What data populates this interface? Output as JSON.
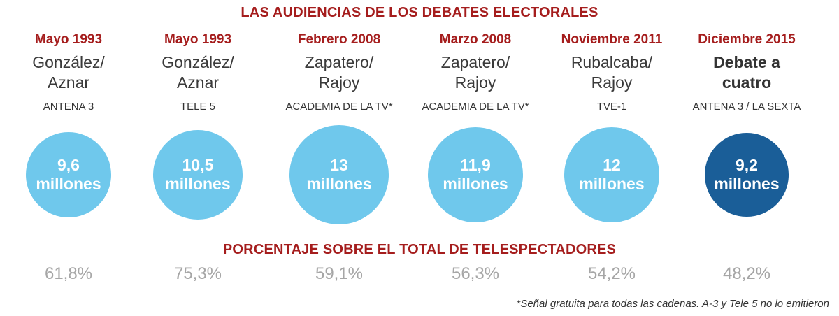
{
  "title": "LAS AUDIENCIAS DE LOS DEBATES ELECTORALES",
  "subtitle": "PORCENTAJE SOBRE EL TOTAL DE TELESPECTADORES",
  "footnote": "*Señal gratuita para todas las cadenas. A-3 y Tele 5 no lo emitieron",
  "colors": {
    "bubble": "#6fc8ec",
    "highlight": "#1a5e98",
    "accent": "#a51d1d",
    "percent": "#a6a6a6"
  },
  "chart_data": {
    "type": "bubble",
    "title": "LAS AUDIENCIAS DE LOS DEBATES ELECTORALES",
    "unit": "millones",
    "debates": [
      {
        "date": "Mayo 1993",
        "participants": "González/\nAznar",
        "channel": "ANTENA 3",
        "audience": 9.6,
        "audience_label": "9,6",
        "share_label": "61,8%",
        "highlight": false
      },
      {
        "date": "Mayo 1993",
        "participants": "González/\nAznar",
        "channel": "TELE 5",
        "audience": 10.5,
        "audience_label": "10,5",
        "share_label": "75,3%",
        "highlight": false
      },
      {
        "date": "Febrero 2008",
        "participants": "Zapatero/\nRajoy",
        "channel": "ACADEMIA DE LA TV*",
        "audience": 13,
        "audience_label": "13",
        "share_label": "59,1%",
        "highlight": false
      },
      {
        "date": "Marzo 2008",
        "participants": "Zapatero/\nRajoy",
        "channel": "ACADEMIA DE LA TV*",
        "audience": 11.9,
        "audience_label": "11,9",
        "share_label": "56,3%",
        "highlight": false
      },
      {
        "date": "Noviembre 2011",
        "participants": "Rubalcaba/\nRajoy",
        "channel": "TVE-1",
        "audience": 12,
        "audience_label": "12",
        "share_label": "54,2%",
        "highlight": false
      },
      {
        "date": "Diciembre 2015",
        "participants": "Debate a\ncuatro",
        "channel": "ANTENA 3 / LA SEXTA",
        "audience": 9.2,
        "audience_label": "9,2",
        "share_label": "48,2%",
        "highlight": true
      }
    ]
  }
}
